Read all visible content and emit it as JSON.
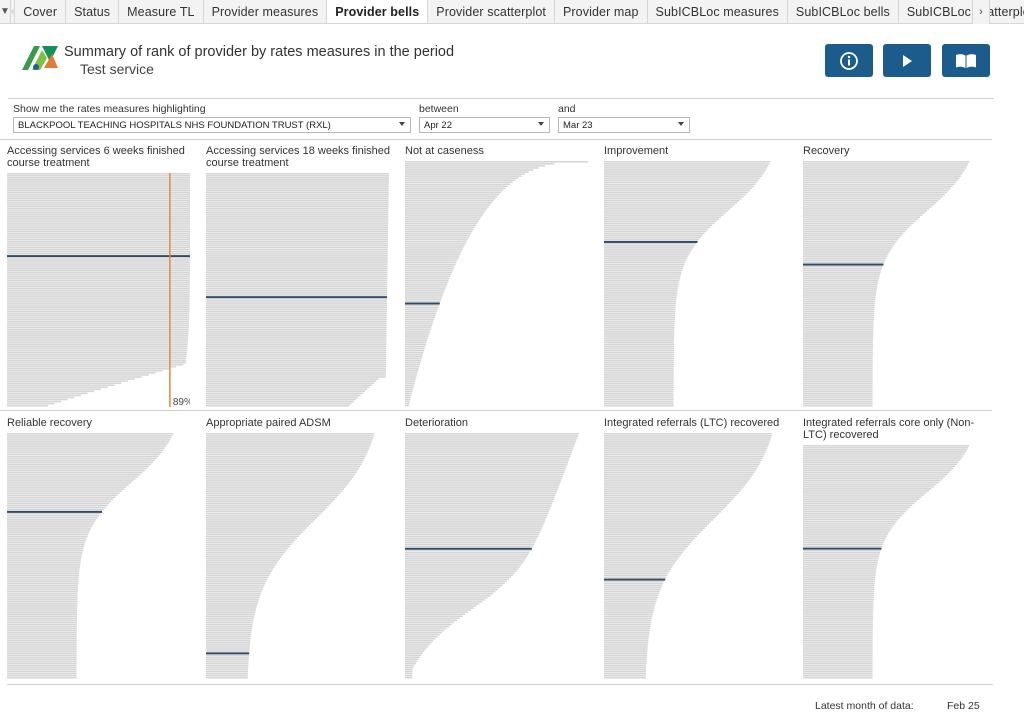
{
  "tabs": {
    "items": [
      "Cover",
      "Status",
      "Measure TL",
      "Provider measures",
      "Provider bells",
      "Provider scatterplot",
      "Provider map",
      "SubICBLoc measures",
      "SubICBLoc bells",
      "SubICBLoc scatterplot"
    ],
    "active": "Provider bells"
  },
  "header": {
    "title": "Summary of rank of provider by rates measures in the period",
    "subtitle": "Test service",
    "buttons": [
      "info-icon",
      "play-icon",
      "book-icon"
    ],
    "button_color": "#1b5c8c"
  },
  "filters": {
    "highlight_label": "Show me the rates measures highlighting",
    "highlight_value": "BLACKPOOL TEACHING HOSPITALS NHS FOUNDATION TRUST (RXL)",
    "between_label": "between",
    "between_value": "Apr 22",
    "and_label": "and",
    "and_value": "Mar 23"
  },
  "colors": {
    "bar": "#d4d4d4",
    "highlight": "#2f4b68",
    "reference_line": "#e08a3c"
  },
  "panels": [
    {
      "title": "Accessing services 6 weeks finished course treatment",
      "shape": "steep-right",
      "highlight_fraction": 0.35,
      "reference_label": "89%"
    },
    {
      "title": "Accessing services 18 weeks finished course treatment",
      "shape": "flat-full",
      "highlight_fraction": 0.53
    },
    {
      "title": "Not at caseness",
      "shape": "decreasing",
      "highlight_fraction": 0.58
    },
    {
      "title": "Improvement",
      "shape": "s-curve",
      "highlight_fraction": 0.33
    },
    {
      "title": "Recovery",
      "shape": "s-curve",
      "highlight_fraction": 0.42
    },
    {
      "title": "Reliable recovery",
      "shape": "s-curve",
      "highlight_fraction": 0.32
    },
    {
      "title": "Appropriate paired ADSM",
      "shape": "s-curve-wide",
      "highlight_fraction": 0.9
    },
    {
      "title": "Deterioration",
      "shape": "decreasing-s",
      "highlight_fraction": 0.47
    },
    {
      "title": "Integrated referrals (LTC) recovered",
      "shape": "s-curve-wide",
      "highlight_fraction": 0.6
    },
    {
      "title": "Integrated referrals core only (Non-LTC) recovered",
      "shape": "s-curve",
      "highlight_fraction": 0.44
    }
  ],
  "footer": {
    "latest_label": "Latest month of data:",
    "latest_value": "Feb 25"
  }
}
